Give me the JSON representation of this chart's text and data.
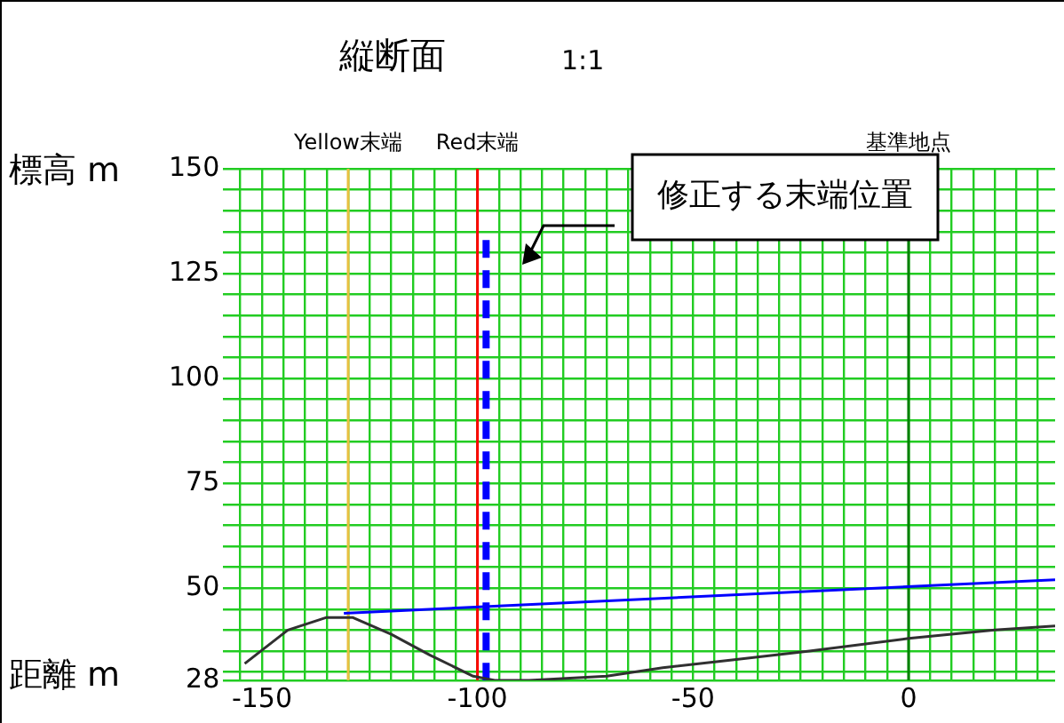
{
  "chart_data": {
    "type": "line",
    "title": "縦断面",
    "subtitle": "1:1",
    "xlabel": "距離 m",
    "ylabel": "標高 m",
    "xlim": [
      -159,
      34
    ],
    "xticks": [
      {
        "value": -155,
        "label": null
      },
      -150,
      {
        "value": -145,
        "label": null
      },
      {
        "value": -140,
        "label": null
      },
      {
        "value": -135,
        "label": null
      },
      {
        "value": -130,
        "label": null
      },
      {
        "value": -125,
        "label": null
      },
      {
        "value": -120,
        "label": null
      },
      {
        "value": -115,
        "label": null
      },
      {
        "value": -110,
        "label": null
      },
      {
        "value": -105,
        "label": null
      },
      -100,
      {
        "value": -95,
        "label": null
      },
      {
        "value": -90,
        "label": null
      },
      {
        "value": -85,
        "label": null
      },
      {
        "value": -80,
        "label": null
      },
      {
        "value": -75,
        "label": null
      },
      {
        "value": -70,
        "label": null
      },
      {
        "value": -65,
        "label": null
      },
      {
        "value": -60,
        "label": null
      },
      {
        "value": -55,
        "label": null
      },
      -50,
      {
        "value": -45,
        "label": null
      },
      {
        "value": -40,
        "label": null
      },
      {
        "value": -35,
        "label": null
      },
      {
        "value": -30,
        "label": null
      },
      {
        "value": -25,
        "label": null
      },
      {
        "value": -20,
        "label": null
      },
      {
        "value": -15,
        "label": null
      },
      {
        "value": -10,
        "label": null
      },
      {
        "value": -5,
        "label": null
      },
      0,
      {
        "value": 5,
        "label": null
      },
      {
        "value": 10,
        "label": null
      },
      {
        "value": 15,
        "label": null
      },
      {
        "value": 20,
        "label": null
      },
      {
        "value": 25,
        "label": null
      },
      {
        "value": 30,
        "label": null
      }
    ],
    "ylim": [
      28,
      150
    ],
    "yticks": [
      28,
      {
        "value": 30,
        "label": null
      },
      {
        "value": 35,
        "label": null
      },
      {
        "value": 40,
        "label": null
      },
      {
        "value": 45,
        "label": null
      },
      50,
      {
        "value": 55,
        "label": null
      },
      {
        "value": 60,
        "label": null
      },
      {
        "value": 65,
        "label": null
      },
      {
        "value": 70,
        "label": null
      },
      75,
      {
        "value": 80,
        "label": null
      },
      {
        "value": 85,
        "label": null
      },
      {
        "value": 90,
        "label": null
      },
      {
        "value": 95,
        "label": null
      },
      100,
      {
        "value": 105,
        "label": null
      },
      {
        "value": 110,
        "label": null
      },
      {
        "value": 115,
        "label": null
      },
      {
        "value": 120,
        "label": null
      },
      125,
      {
        "value": 130,
        "label": null
      },
      {
        "value": 135,
        "label": null
      },
      {
        "value": 140,
        "label": null
      },
      {
        "value": 145,
        "label": null
      },
      150
    ],
    "grid": true,
    "legend": false,
    "marker": "none",
    "series": [
      {
        "color": "#303030",
        "x": [
          -154,
          -144,
          -135,
          -129,
          -120,
          -111,
          -101,
          -96,
          -88,
          -70,
          -57,
          -40,
          -23,
          0,
          20,
          34
        ],
        "values": [
          32,
          40,
          43,
          43,
          39,
          34,
          29,
          28,
          28,
          29,
          31,
          33,
          35,
          38,
          40,
          41
        ]
      },
      {
        "color": "#0000ff",
        "x": [
          -98,
          -98
        ],
        "values": [
          133,
          28
        ],
        "line_style": "dashed"
      },
      {
        "color": "#0000ff",
        "x": [
          -131,
          34
        ],
        "values": [
          44,
          52
        ]
      }
    ],
    "ref_lines": [
      {
        "axis": "x",
        "value": -130,
        "label": "Yellow末端",
        "color": "#e8c040"
      },
      {
        "axis": "x",
        "value": -100,
        "label": "Red末端",
        "color": "#ff0000"
      },
      {
        "axis": "x",
        "value": 0,
        "label": "基準地点",
        "color": "#008000"
      }
    ],
    "annotations": [
      "修正する末端位置"
    ]
  }
}
